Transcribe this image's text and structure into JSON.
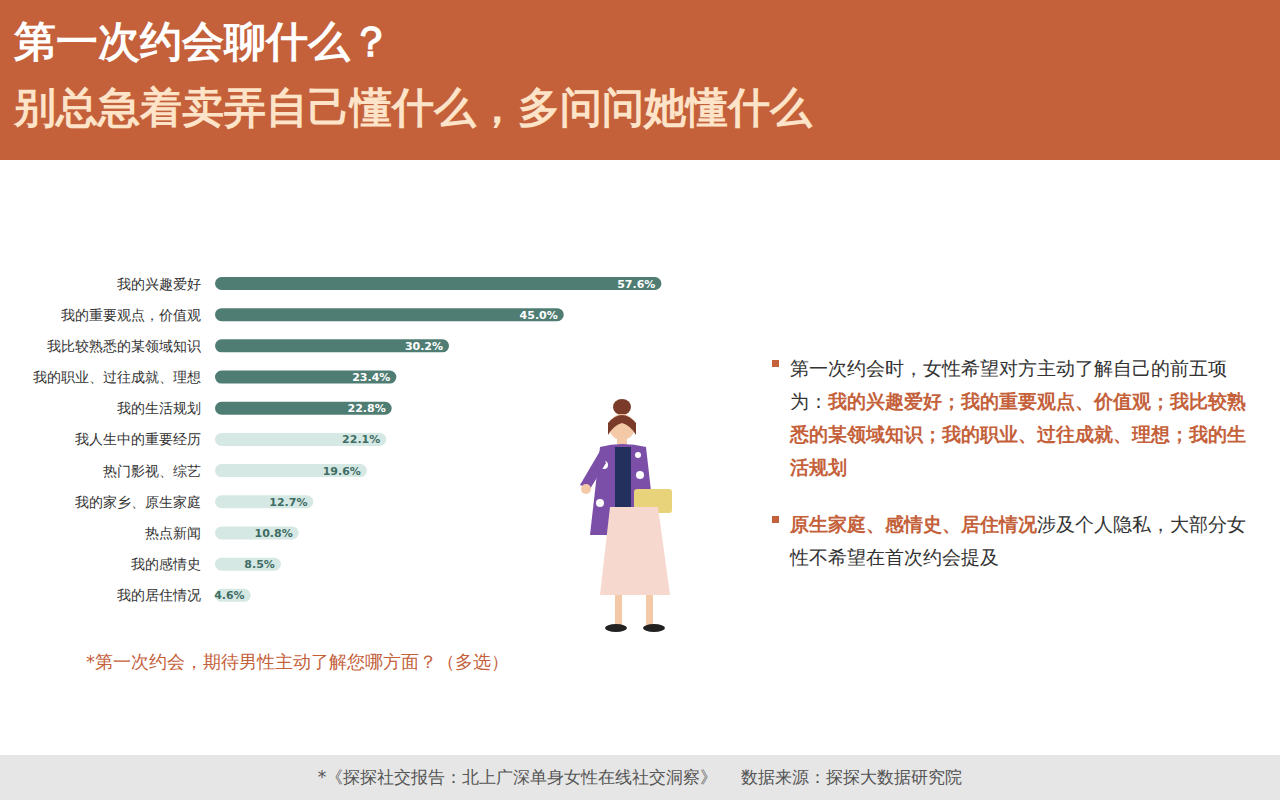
{
  "header": {
    "title": "第一次约会聊什么？",
    "subtitle": "别总急着卖弄自己懂什么，多问问她懂什么"
  },
  "chart_data": {
    "type": "bar",
    "orientation": "horizontal",
    "categories": [
      "我的兴趣爱好",
      "我的重要观点，价值观",
      "我比较熟悉的某领域知识",
      "我的职业、过往成就、理想",
      "我的生活规划",
      "我人生中的重要经历",
      "热门影视、综艺",
      "我的家乡、原生家庭",
      "热点新闻",
      "我的感情史",
      "我的居住情况"
    ],
    "values": [
      57.6,
      45.0,
      30.2,
      23.4,
      22.8,
      22.1,
      19.6,
      12.7,
      10.8,
      8.5,
      4.6
    ],
    "value_labels": [
      "57.6%",
      "45.0%",
      "30.2%",
      "23.4%",
      "22.8%",
      "22.1%",
      "19.6%",
      "12.7%",
      "10.8%",
      "8.5%",
      "4.6%"
    ],
    "colors": [
      "#4f7d74",
      "#4f7d74",
      "#4f7d74",
      "#4f7d74",
      "#4f7d74",
      "#d6e8e4",
      "#d6e8e4",
      "#d6e8e4",
      "#d6e8e4",
      "#d6e8e4",
      "#d6e8e4"
    ],
    "xlim": [
      0,
      60
    ],
    "tick_labels": "y",
    "data_labels": true,
    "grid": false,
    "note": "*第一次约会，期待男性主动了解您哪方面？（多选）"
  },
  "notes": [
    [
      {
        "text": "第一次约会时，女性希望对方主动了解自己的前五项为：",
        "highlight": false
      },
      {
        "text": "我的兴趣爱好；我的重要观点、价值观；我比较熟悉的某领域知识；我的职业、过往成就、理想；我的生活规划",
        "highlight": true
      }
    ],
    [
      {
        "text": "原生家庭、感情史、居住情况",
        "highlight": true
      },
      {
        "text": "涉及个人隐私，大部分女性不希望在首次约会提及",
        "highlight": false
      }
    ]
  ],
  "footer": [
    "*《探探社交报告：北上广深单身女性在线社交洞察》",
    "数据来源：探探大数据研究院"
  ]
}
